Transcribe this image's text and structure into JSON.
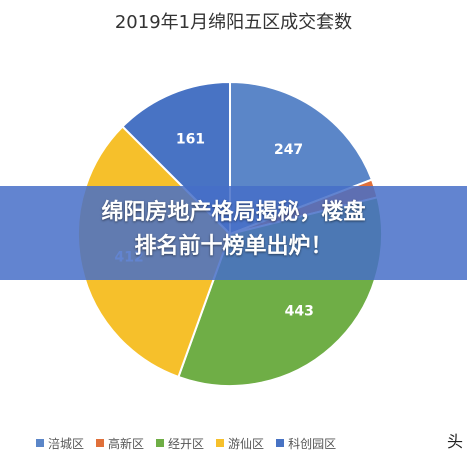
{
  "chart_data": {
    "type": "pie",
    "title": "2019年1月绵阳五区成交套数",
    "slices": [
      {
        "label": "涪城区",
        "value": 247,
        "color": "#5B86C8",
        "show_label": true
      },
      {
        "label": "高新区",
        "value": 25,
        "color": "#E0703A",
        "show_label": false
      },
      {
        "label": "经开区",
        "value": 443,
        "color": "#6FAE46",
        "show_label": true
      },
      {
        "label": "游仙区",
        "value": 412,
        "color": "#F6C02B",
        "show_label": true
      },
      {
        "label": "科创园区",
        "value": 161,
        "color": "#4873C4",
        "show_label": true
      }
    ],
    "legend_position": "bottom"
  },
  "banner": {
    "line1": "绵阳房地产格局揭秘，楼盘",
    "line2": "排名前十榜单出炉！"
  },
  "corner_text": "头"
}
